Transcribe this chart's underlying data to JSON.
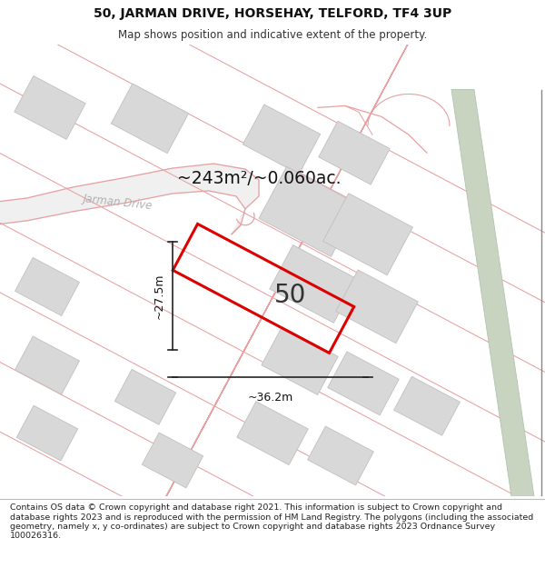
{
  "title": "50, JARMAN DRIVE, HORSEHAY, TELFORD, TF4 3UP",
  "subtitle": "Map shows position and indicative extent of the property.",
  "area_text": "~243m²/~0.060ac.",
  "label_50": "50",
  "dim_width": "~36.2m",
  "dim_height": "~27.5m",
  "map_bg": "#ffffff",
  "road_color": "#e8a0a0",
  "plot_color": "#e8a0a0",
  "property_color": "#dd0000",
  "building_fill": "#d8d8d8",
  "building_edge": "#c0c0c0",
  "green_fill": "#c8d4c0",
  "green_edge": "#b0c4b0",
  "road_label_color": "#aaaaaa",
  "footer_text": "Contains OS data © Crown copyright and database right 2021. This information is subject to Crown copyright and database rights 2023 and is reproduced with the permission of HM Land Registry. The polygons (including the associated geometry, namely x, y co-ordinates) are subject to Crown copyright and database rights 2023 Ordnance Survey 100026316.",
  "title_fontsize": 10,
  "subtitle_fontsize": 8.5,
  "footer_fontsize": 6.8,
  "header_bg": "#f2f2f2",
  "footer_bg": "#ffffff"
}
